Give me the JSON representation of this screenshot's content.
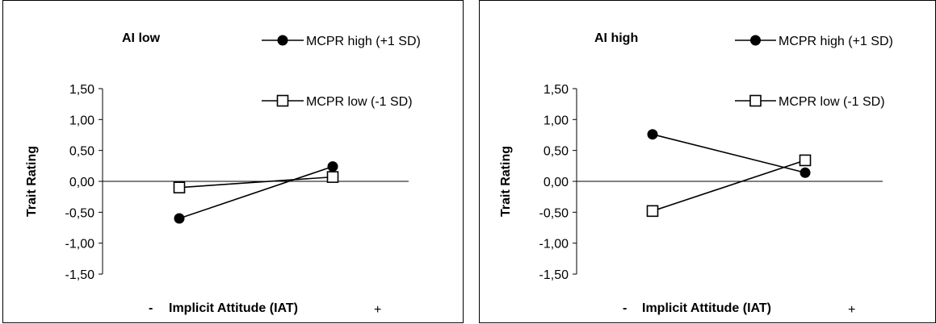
{
  "chart_data": [
    {
      "type": "line",
      "title": "AI low",
      "xlabel": "Implicit Attitude (IAT)",
      "x_low_label": "-",
      "x_high_label": "+",
      "ylabel": "Trait Rating",
      "ylim": [
        -1.5,
        1.5
      ],
      "yticks": [
        "1,50",
        "1,00",
        "0,50",
        "0,00",
        "-0,50",
        "-1,00",
        "-1,50"
      ],
      "categories": [
        "-",
        "+"
      ],
      "series": [
        {
          "name": "MCPR high (+1 SD)",
          "marker": "filled-circle",
          "values": [
            -0.6,
            0.24
          ]
        },
        {
          "name": "MCPR low (-1 SD)",
          "marker": "open-square",
          "values": [
            -0.1,
            0.07
          ]
        }
      ],
      "grid": false,
      "legend": "top-right"
    },
    {
      "type": "line",
      "title": "AI high",
      "xlabel": "Implicit Attitude (IAT)",
      "x_low_label": "-",
      "x_high_label": "+",
      "ylabel": "Trait Rating",
      "ylim": [
        -1.5,
        1.5
      ],
      "yticks": [
        "1,50",
        "1,00",
        "0,50",
        "0,00",
        "-0,50",
        "-1,00",
        "-1,50"
      ],
      "categories": [
        "-",
        "+"
      ],
      "series": [
        {
          "name": "MCPR high (+1 SD)",
          "marker": "filled-circle",
          "values": [
            0.76,
            0.14
          ]
        },
        {
          "name": "MCPR low (-1 SD)",
          "marker": "open-square",
          "values": [
            -0.48,
            0.34
          ]
        }
      ],
      "grid": false,
      "legend": "top-right"
    }
  ]
}
